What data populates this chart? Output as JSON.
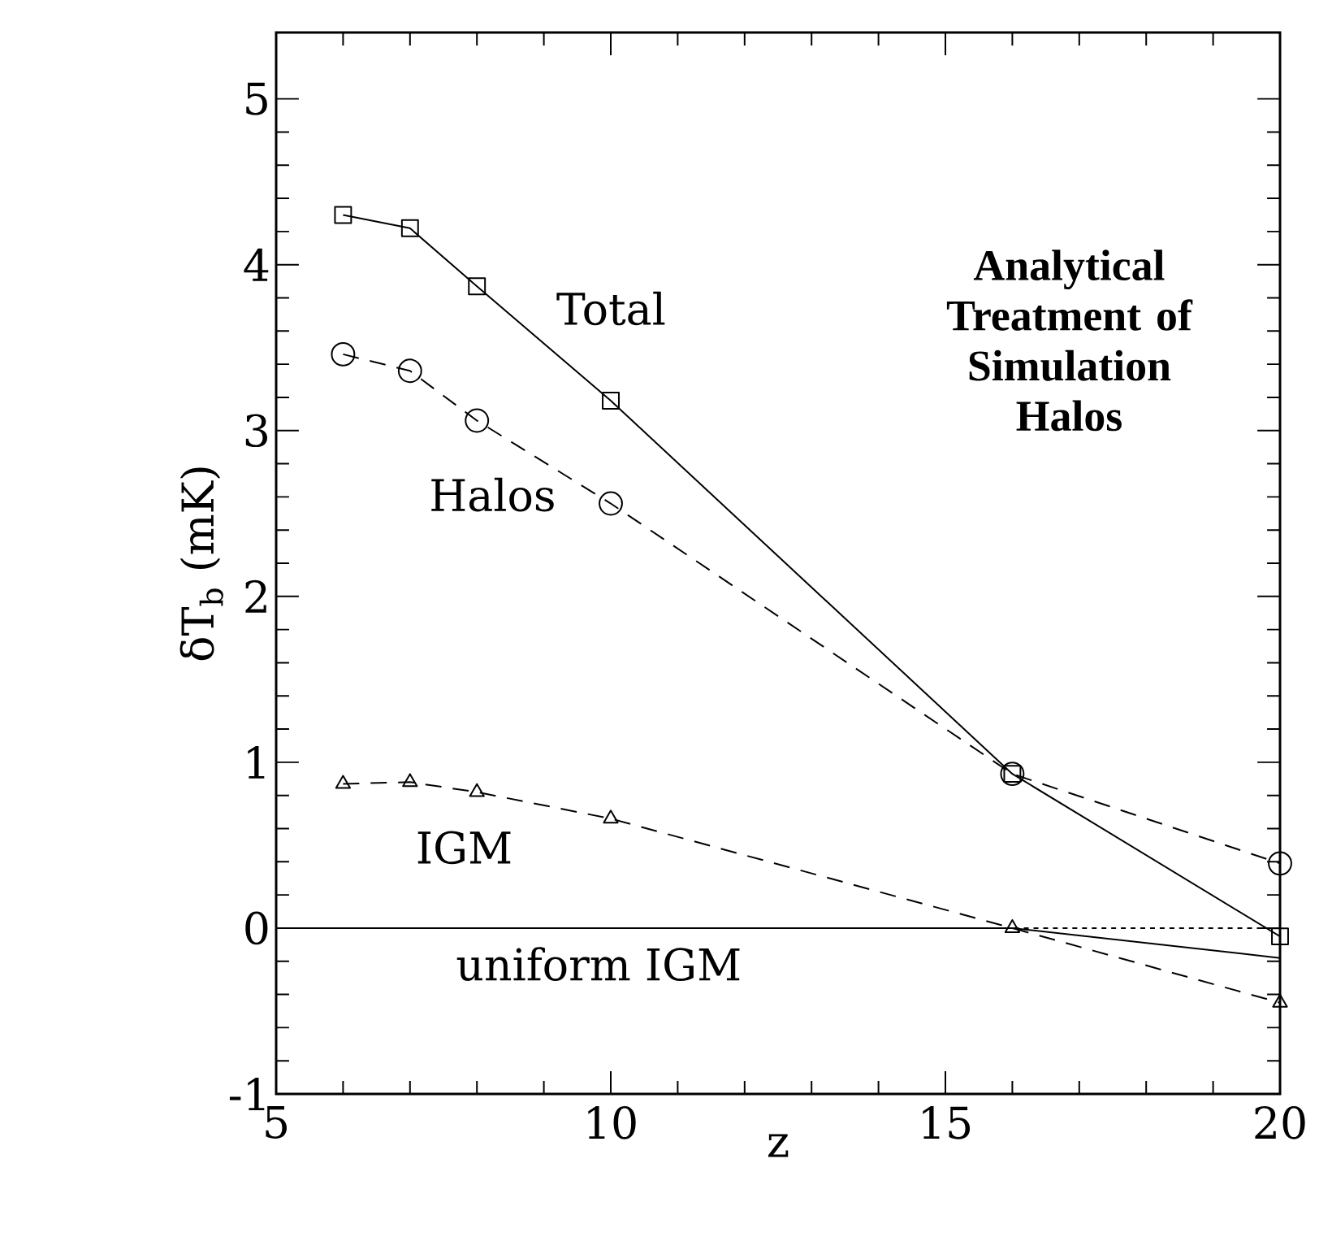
{
  "chart_data": {
    "type": "line",
    "xlabel": "z",
    "ylabel": "δT$_{b}$ (mK)",
    "xlim": [
      5,
      20
    ],
    "ylim": [
      -1,
      5.4
    ],
    "xticks": [
      5,
      10,
      15,
      20
    ],
    "yticks": [
      -1,
      0,
      1,
      2,
      3,
      4,
      5
    ],
    "grid": false,
    "series": [
      {
        "name": "Total",
        "color": "#000000",
        "marker": "square",
        "line_style": "solid",
        "x": [
          6,
          7,
          8,
          10,
          16,
          20
        ],
        "values": [
          4.3,
          4.22,
          3.87,
          3.18,
          0.93,
          -0.05
        ]
      },
      {
        "name": "Halos",
        "color": "#000000",
        "marker": "circle",
        "line_style": "dashed",
        "x": [
          6,
          7,
          8,
          10,
          16,
          20
        ],
        "values": [
          3.46,
          3.36,
          3.06,
          2.56,
          0.93,
          0.39
        ]
      },
      {
        "name": "IGM",
        "color": "#000000",
        "marker": "triangle",
        "line_style": "dashed",
        "x": [
          6,
          7,
          8,
          10,
          16,
          20
        ],
        "values": [
          0.87,
          0.88,
          0.82,
          0.66,
          0.0,
          -0.45
        ]
      },
      {
        "name": "uniform IGM",
        "color": "#000000",
        "marker": "none",
        "line_style": "solid",
        "x": [
          5,
          16,
          20
        ],
        "values": [
          0.0,
          0.0,
          -0.18
        ]
      }
    ],
    "ref_lines": [
      {
        "axis": "y",
        "value": 0,
        "line_style": "dotted"
      }
    ],
    "annotations": [
      "**Analytical Treatment of Simulation Halos**"
    ]
  }
}
